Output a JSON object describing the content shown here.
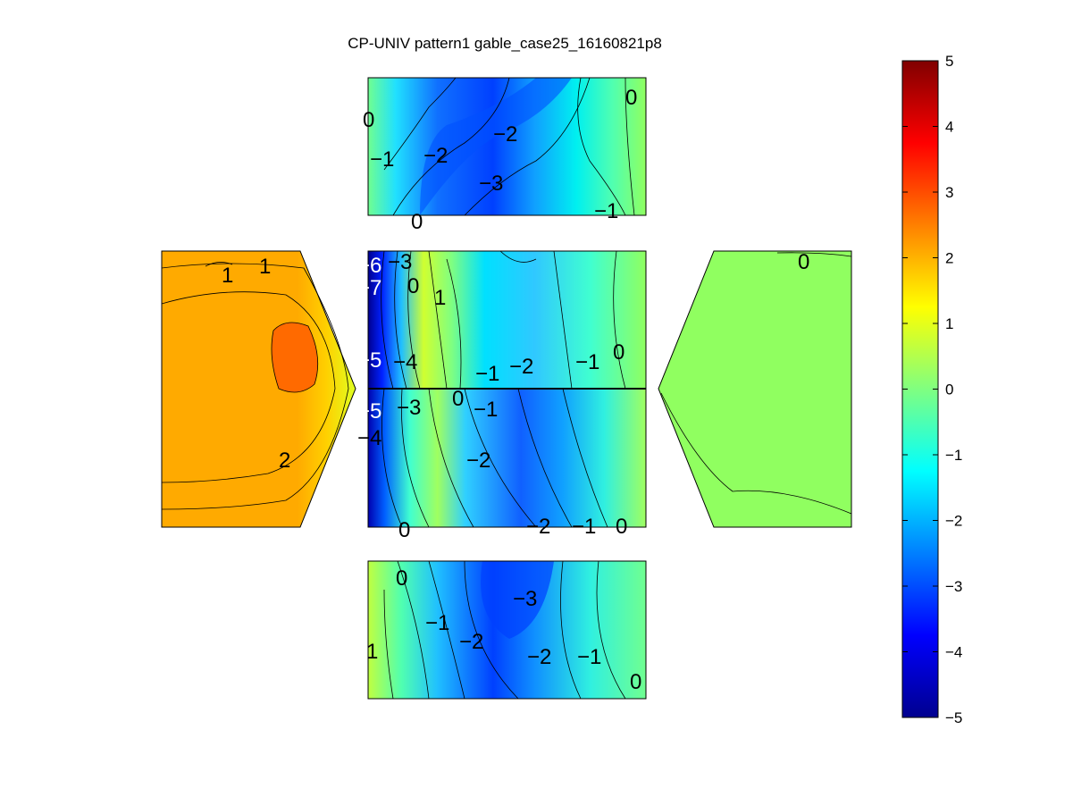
{
  "chart_data": {
    "type": "heatmap",
    "title": "CP-UNIV pattern1 gable_case25_16160821p8",
    "colormap": "jet",
    "clim": [
      -5,
      5
    ],
    "colorbar": {
      "ticks": [
        5,
        4,
        3,
        2,
        1,
        0,
        -1,
        -2,
        -3,
        -4,
        -5
      ],
      "tick_labels": [
        "5",
        "4",
        "3",
        "2",
        "1",
        "0",
        "−1",
        "−2",
        "−3",
        "−4",
        "−5"
      ],
      "location": "right"
    },
    "panels": [
      {
        "name": "top wall",
        "contour_labels": [
          "0",
          "−1",
          "−2",
          "−2",
          "−3",
          "0",
          "−1",
          "0"
        ]
      },
      {
        "name": "left gable",
        "contour_labels": [
          "1",
          "1",
          "2"
        ]
      },
      {
        "name": "roof",
        "contour_labels": [
          "−6",
          "−3",
          "−7",
          "0",
          "1",
          "−5",
          "−4",
          "−1",
          "−2",
          "−1",
          "0",
          "0",
          "−1",
          "−5",
          "−3",
          "−4",
          "−2",
          "0",
          "−2",
          "−1",
          "0"
        ]
      },
      {
        "name": "right gable",
        "contour_labels": [
          "0"
        ]
      },
      {
        "name": "bottom wall",
        "contour_labels": [
          "0",
          "−3",
          "−1",
          "−2",
          "1",
          "−2",
          "−1",
          "0"
        ]
      }
    ]
  }
}
